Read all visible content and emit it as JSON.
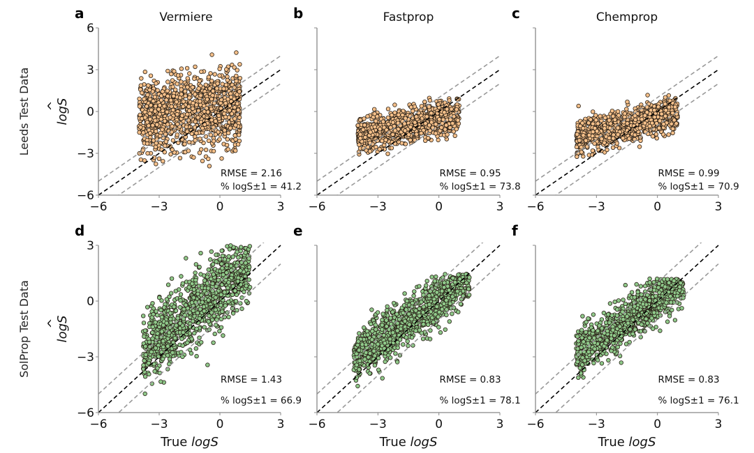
{
  "chart_data": [
    {
      "type": "scatter",
      "panel": "a",
      "title": "Vermiere",
      "row_label": "Leeds Test Data",
      "xlabel": "",
      "ylabel": "logŜ",
      "xlim": [
        -6,
        3
      ],
      "ylim": [
        -6,
        6
      ],
      "xticks": [
        -6,
        -3,
        0,
        3
      ],
      "yticks": [
        -6,
        -3,
        0,
        3,
        6
      ],
      "reference_lines": [
        {
          "slope": 1,
          "offset": 0,
          "style": "black-dashed"
        },
        {
          "slope": 1,
          "offset": 1,
          "style": "gray-dashed"
        },
        {
          "slope": 1,
          "offset": -1,
          "style": "gray-dashed"
        }
      ],
      "point_color": "#f5c08a",
      "distribution": {
        "x_range": [
          -4,
          1
        ],
        "y_center": 0,
        "y_spread": 1.4,
        "slope": 0.15,
        "y_range": [
          -4.6,
          5.6
        ]
      },
      "annotations": {
        "rmse": "RMSE = 2.16",
        "pct": "% logS±1 = 41.2"
      },
      "rmse": 2.16,
      "pct_within_1": 41.2
    },
    {
      "type": "scatter",
      "panel": "b",
      "title": "Fastprop",
      "row_label": "",
      "xlabel": "",
      "ylabel": "",
      "xlim": [
        -6,
        3
      ],
      "ylim": [
        -6,
        6
      ],
      "xticks": [
        -6,
        -3,
        0,
        3
      ],
      "yticks": [
        -6,
        -3,
        0,
        3,
        6
      ],
      "reference_lines": [
        {
          "slope": 1,
          "offset": 0,
          "style": "black-dashed"
        },
        {
          "slope": 1,
          "offset": 1,
          "style": "gray-dashed"
        },
        {
          "slope": 1,
          "offset": -1,
          "style": "gray-dashed"
        }
      ],
      "point_color": "#f5c08a",
      "distribution": {
        "x_range": [
          -4,
          1
        ],
        "y_center": -1.0,
        "y_spread": 0.6,
        "slope": 0.3,
        "y_range": [
          -4.3,
          1.0
        ]
      },
      "annotations": {
        "rmse": "RMSE = 0.95",
        "pct": "% logS±1 = 73.8"
      },
      "rmse": 0.95,
      "pct_within_1": 73.8
    },
    {
      "type": "scatter",
      "panel": "c",
      "title": "Chemprop",
      "row_label": "",
      "xlabel": "",
      "ylabel": "",
      "xlim": [
        -6,
        3
      ],
      "ylim": [
        -6,
        6
      ],
      "xticks": [
        -6,
        -3,
        0,
        3
      ],
      "yticks": [
        -6,
        -3,
        0,
        3,
        6
      ],
      "reference_lines": [
        {
          "slope": 1,
          "offset": 0,
          "style": "black-dashed"
        },
        {
          "slope": 1,
          "offset": 1,
          "style": "gray-dashed"
        },
        {
          "slope": 1,
          "offset": -1,
          "style": "gray-dashed"
        }
      ],
      "point_color": "#f5c08a",
      "distribution": {
        "x_range": [
          -4,
          1
        ],
        "y_center": -1.0,
        "y_spread": 0.6,
        "slope": 0.35,
        "y_range": [
          -4.0,
          1.2
        ]
      },
      "annotations": {
        "rmse": "RMSE = 0.99",
        "pct": "% logS±1 = 70.9"
      },
      "rmse": 0.99,
      "pct_within_1": 70.9
    },
    {
      "type": "scatter",
      "panel": "d",
      "title": "",
      "row_label": "SolProp Test Data",
      "xlabel": "True logS",
      "ylabel": "logŜ",
      "xlim": [
        -6,
        3
      ],
      "ylim": [
        -6,
        3
      ],
      "xticks": [
        -6,
        -3,
        0,
        3
      ],
      "yticks": [
        -6,
        -3,
        0,
        3
      ],
      "reference_lines": [
        {
          "slope": 1,
          "offset": 0,
          "style": "black-dashed"
        },
        {
          "slope": 1,
          "offset": 1,
          "style": "gray-dashed"
        },
        {
          "slope": 1,
          "offset": -1,
          "style": "gray-dashed"
        }
      ],
      "point_color": "#8fc98a",
      "distribution": {
        "x_range": [
          -3.8,
          1.5
        ],
        "y_center": -0.3,
        "y_spread": 1.0,
        "slope": 0.9,
        "y_range": [
          -6,
          3
        ]
      },
      "annotations": {
        "rmse": "RMSE = 1.43",
        "pct": "% logS±1 = 66.9"
      },
      "rmse": 1.43,
      "pct_within_1": 66.9
    },
    {
      "type": "scatter",
      "panel": "e",
      "title": "",
      "row_label": "",
      "xlabel": "True logS",
      "ylabel": "",
      "xlim": [
        -6,
        3
      ],
      "ylim": [
        -6,
        3
      ],
      "xticks": [
        -6,
        -3,
        0,
        3
      ],
      "yticks": [
        -6,
        -3,
        0,
        3
      ],
      "reference_lines": [
        {
          "slope": 1,
          "offset": 0,
          "style": "black-dashed"
        },
        {
          "slope": 1,
          "offset": 1,
          "style": "gray-dashed"
        },
        {
          "slope": 1,
          "offset": -1,
          "style": "gray-dashed"
        }
      ],
      "point_color": "#8fc98a",
      "distribution": {
        "x_range": [
          -4.2,
          1.5
        ],
        "y_center": -0.9,
        "y_spread": 0.65,
        "slope": 0.75,
        "y_range": [
          -5.3,
          1.5
        ]
      },
      "annotations": {
        "rmse": "RMSE = 0.83",
        "pct": "% logS±1 = 78.1"
      },
      "rmse": 0.83,
      "pct_within_1": 78.1
    },
    {
      "type": "scatter",
      "panel": "f",
      "title": "",
      "row_label": "",
      "xlabel": "True logS",
      "ylabel": "",
      "xlim": [
        -6,
        3
      ],
      "ylim": [
        -6,
        3
      ],
      "xticks": [
        -6,
        -3,
        0,
        3
      ],
      "yticks": [
        -6,
        -3,
        0,
        3
      ],
      "reference_lines": [
        {
          "slope": 1,
          "offset": 0,
          "style": "black-dashed"
        },
        {
          "slope": 1,
          "offset": 1,
          "style": "gray-dashed"
        },
        {
          "slope": 1,
          "offset": -1,
          "style": "gray-dashed"
        }
      ],
      "point_color": "#8fc98a",
      "distribution": {
        "x_range": [
          -4.0,
          1.3
        ],
        "y_center": -0.9,
        "y_spread": 0.6,
        "slope": 0.75,
        "y_range": [
          -5.0,
          1.2
        ]
      },
      "annotations": {
        "rmse": "RMSE = 0.83",
        "pct": "% logS±1 = 76.1"
      },
      "rmse": 0.83,
      "pct_within_1": 76.1
    }
  ],
  "figure": {
    "row_labels": [
      "Leeds Test Data",
      "SolProp Test Data"
    ],
    "ylabel_text": "logS",
    "xlabel_prefix": "True ",
    "xlabel_italic": "logS",
    "colors": {
      "leeds_points": "#f5c08a",
      "solprop_points": "#8fc98a",
      "point_edge": "#2a2118",
      "identity_line": "#000000",
      "band_line": "#999999",
      "axis": "#888888"
    }
  }
}
